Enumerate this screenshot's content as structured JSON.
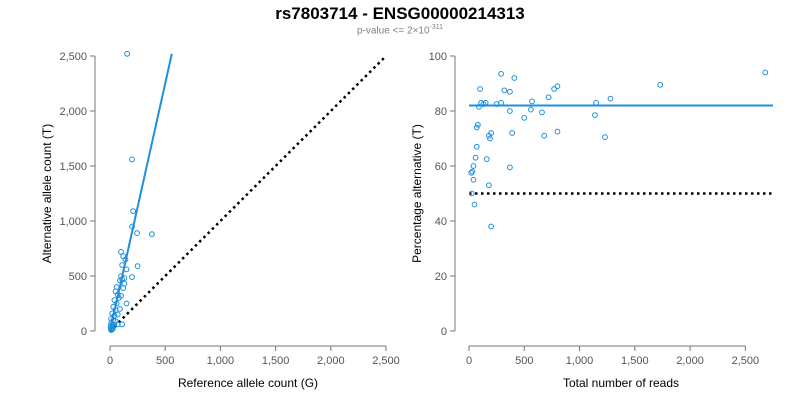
{
  "header": {
    "title": "rs7803714 - ENSG00000214313",
    "subtitle_prefix": "p-value <= 2×10",
    "subtitle_exponent": "-311"
  },
  "colors": {
    "points": "#1f8fdc",
    "fit_line": "#1f8fdc",
    "reference_line": "#000000",
    "axis": "#777777"
  },
  "chart_data": [
    {
      "type": "scatter",
      "xlabel": "Reference allele count (G)",
      "ylabel": "Alternative allele count (T)",
      "xlim": [
        0,
        2500
      ],
      "ylim": [
        0,
        2500
      ],
      "xticks": [
        0,
        500,
        1000,
        1500,
        2000,
        2500
      ],
      "yticks": [
        0,
        500,
        1000,
        1500,
        2000,
        2500
      ],
      "xtick_labels": [
        "0",
        "500",
        "1,000",
        "1,500",
        "2,000",
        "2,500"
      ],
      "ytick_labels": [
        "0",
        "500",
        "1,000",
        "1,500",
        "2,000",
        "2,500"
      ],
      "points": [
        [
          155,
          2520
        ],
        [
          200,
          1560
        ],
        [
          210,
          1090
        ],
        [
          245,
          890
        ],
        [
          380,
          880
        ],
        [
          200,
          950
        ],
        [
          250,
          590
        ],
        [
          100,
          720
        ],
        [
          120,
          680
        ],
        [
          140,
          650
        ],
        [
          110,
          600
        ],
        [
          150,
          560
        ],
        [
          100,
          500
        ],
        [
          130,
          480
        ],
        [
          200,
          490
        ],
        [
          90,
          460
        ],
        [
          110,
          470
        ],
        [
          130,
          430
        ],
        [
          60,
          400
        ],
        [
          50,
          360
        ],
        [
          120,
          390
        ],
        [
          70,
          330
        ],
        [
          40,
          280
        ],
        [
          80,
          300
        ],
        [
          100,
          320
        ],
        [
          150,
          250
        ],
        [
          60,
          250
        ],
        [
          30,
          220
        ],
        [
          50,
          190
        ],
        [
          90,
          200
        ],
        [
          20,
          160
        ],
        [
          40,
          140
        ],
        [
          70,
          150
        ],
        [
          10,
          110
        ],
        [
          30,
          100
        ],
        [
          50,
          90
        ],
        [
          10,
          70
        ],
        [
          20,
          60
        ],
        [
          40,
          50
        ],
        [
          70,
          60
        ],
        [
          110,
          60
        ],
        [
          5,
          40
        ],
        [
          15,
          30
        ],
        [
          25,
          20
        ],
        [
          8,
          15
        ],
        [
          12,
          8
        ],
        [
          30,
          40
        ]
      ],
      "fit_line": [
        [
          0,
          0
        ],
        [
          560,
          2520
        ]
      ],
      "reference_line": [
        [
          0,
          0
        ],
        [
          2500,
          2500
        ]
      ]
    },
    {
      "type": "scatter",
      "xlabel": "Total number of reads",
      "ylabel": "Percentage alternative (T)",
      "xlim": [
        0,
        2750
      ],
      "ylim": [
        0,
        100
      ],
      "xticks": [
        0,
        500,
        1000,
        1500,
        2000,
        2500
      ],
      "yticks": [
        0,
        20,
        40,
        60,
        80,
        100
      ],
      "xtick_labels": [
        "0",
        "500",
        "1,000",
        "1,500",
        "2,000",
        "2,500"
      ],
      "ytick_labels": [
        "0",
        "20",
        "40",
        "60",
        "80",
        "100"
      ],
      "points": [
        [
          2680,
          94
        ],
        [
          1730,
          89.5
        ],
        [
          1280,
          84.5
        ],
        [
          1150,
          83
        ],
        [
          1140,
          78.5
        ],
        [
          1230,
          70.5
        ],
        [
          800,
          89
        ],
        [
          770,
          88
        ],
        [
          720,
          85
        ],
        [
          800,
          72.5
        ],
        [
          680,
          71
        ],
        [
          660,
          79.5
        ],
        [
          570,
          83.5
        ],
        [
          560,
          80.5
        ],
        [
          500,
          77.5
        ],
        [
          370,
          87
        ],
        [
          320,
          87.5
        ],
        [
          290,
          93.5
        ],
        [
          410,
          92
        ],
        [
          370,
          80
        ],
        [
          390,
          72
        ],
        [
          370,
          59.5
        ],
        [
          290,
          83
        ],
        [
          250,
          82.5
        ],
        [
          200,
          72
        ],
        [
          180,
          71
        ],
        [
          190,
          70
        ],
        [
          160,
          62.5
        ],
        [
          180,
          53
        ],
        [
          200,
          38
        ],
        [
          150,
          83
        ],
        [
          130,
          82.5
        ],
        [
          110,
          83
        ],
        [
          90,
          81.5
        ],
        [
          100,
          88
        ],
        [
          80,
          75
        ],
        [
          70,
          74
        ],
        [
          70,
          67
        ],
        [
          60,
          63
        ],
        [
          40,
          60
        ],
        [
          30,
          58
        ],
        [
          20,
          57.5
        ],
        [
          50,
          46
        ],
        [
          25,
          50
        ],
        [
          40,
          55
        ]
      ],
      "fit_line": [
        [
          0,
          82
        ],
        [
          2750,
          82
        ]
      ],
      "reference_line": [
        [
          0,
          50
        ],
        [
          2750,
          50
        ]
      ]
    }
  ]
}
